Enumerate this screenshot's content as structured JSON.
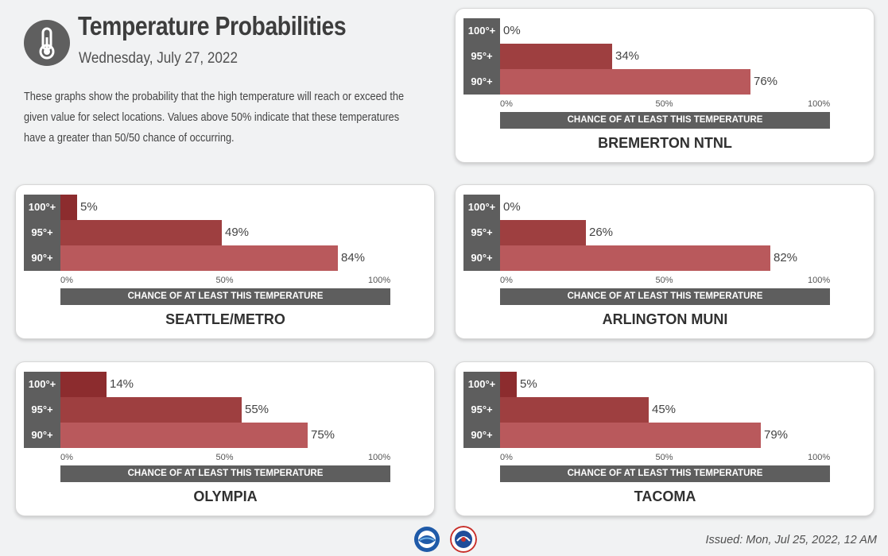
{
  "header": {
    "title": "Temperature Probabilities",
    "date": "Wednesday, July 27, 2022",
    "icon": "thermometer-icon",
    "description": "These graphs show the probability that the high temperature will reach or exceed the given value for select locations. Values above 50% indicate that these temperatures have a greater than 50/50 chance of occurring."
  },
  "axis": {
    "ticks": [
      "0%",
      "50%",
      "100%"
    ],
    "label": "CHANCE OF AT LEAST THIS TEMPERATURE"
  },
  "thresholds": [
    "100°+",
    "95°+",
    "90°+"
  ],
  "colors": {
    "t100": "#8c2c2e",
    "t95": "#9e3f40",
    "t90": "#b9595c",
    "label_bg": "#5e5e5e"
  },
  "chart_data": [
    {
      "type": "bar",
      "title": "BREMERTON NTNL",
      "categories": [
        "100°+",
        "95°+",
        "90°+"
      ],
      "values": [
        0,
        34,
        76
      ],
      "xlabel": "CHANCE OF AT LEAST THIS TEMPERATURE",
      "xlim": [
        0,
        100
      ]
    },
    {
      "type": "bar",
      "title": "SEATTLE/METRO",
      "categories": [
        "100°+",
        "95°+",
        "90°+"
      ],
      "values": [
        5,
        49,
        84
      ],
      "xlabel": "CHANCE OF AT LEAST THIS TEMPERATURE",
      "xlim": [
        0,
        100
      ]
    },
    {
      "type": "bar",
      "title": "ARLINGTON MUNI",
      "categories": [
        "100°+",
        "95°+",
        "90°+"
      ],
      "values": [
        0,
        26,
        82
      ],
      "xlabel": "CHANCE OF AT LEAST THIS TEMPERATURE",
      "xlim": [
        0,
        100
      ]
    },
    {
      "type": "bar",
      "title": "OLYMPIA",
      "categories": [
        "100°+",
        "95°+",
        "90°+"
      ],
      "values": [
        14,
        55,
        75
      ],
      "xlabel": "CHANCE OF AT LEAST THIS TEMPERATURE",
      "xlim": [
        0,
        100
      ]
    },
    {
      "type": "bar",
      "title": "TACOMA",
      "categories": [
        "100°+",
        "95°+",
        "90°+"
      ],
      "values": [
        5,
        45,
        79
      ],
      "xlabel": "CHANCE OF AT LEAST THIS TEMPERATURE",
      "xlim": [
        0,
        100
      ]
    }
  ],
  "footer": {
    "issued": "Issued: Mon, Jul 25, 2022, 12 AM",
    "logos": [
      "noaa-logo",
      "nws-logo"
    ]
  }
}
